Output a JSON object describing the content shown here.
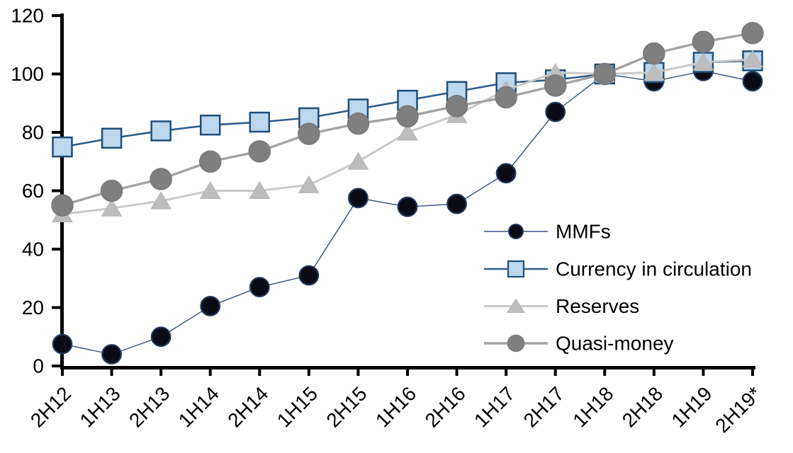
{
  "chart_data": {
    "type": "line",
    "title": "",
    "xlabel": "",
    "ylabel": "",
    "grid": false,
    "ylim": [
      0,
      120
    ],
    "yticks": [
      0,
      20,
      40,
      60,
      80,
      100,
      120
    ],
    "legend_position": "inside-right",
    "categories": [
      "2H12",
      "1H13",
      "2H13",
      "1H14",
      "2H14",
      "1H15",
      "2H15",
      "1H16",
      "2H16",
      "1H17",
      "2H17",
      "1H18",
      "2H18",
      "1H19",
      "2H19*"
    ],
    "series": [
      {
        "name": "MMFs",
        "marker": "circle",
        "marker_fill": "#0b0b15",
        "marker_stroke": "#22395c",
        "line_color": "#33507d",
        "line_width": 1.4,
        "values": [
          7.5,
          4,
          10,
          20.5,
          27,
          31,
          57.5,
          54.5,
          55.5,
          66,
          87,
          100,
          97.5,
          101,
          97.5
        ]
      },
      {
        "name": "Currency in circulation",
        "marker": "square",
        "marker_fill": "#bdd7ee",
        "marker_stroke": "#1f4e79",
        "line_color": "#2e5c8a",
        "line_width": 2.6,
        "values": [
          75,
          78,
          80.5,
          82.5,
          83.5,
          85,
          88,
          91,
          94,
          97,
          98,
          100,
          100.5,
          104,
          104.5
        ]
      },
      {
        "name": "Reserves",
        "marker": "triangle",
        "marker_fill": "#bdbdbd",
        "marker_stroke": "#b3b3b3",
        "line_color": "#c9c9c9",
        "line_width": 3,
        "values": [
          52,
          54,
          56.5,
          60,
          60,
          62,
          70,
          80,
          86,
          94.5,
          100.5,
          100,
          100.5,
          104,
          105
        ]
      },
      {
        "name": "Quasi-money",
        "marker": "circle",
        "marker_fill": "#7f7f7f",
        "marker_stroke": "#787878",
        "line_color": "#a3a3a3",
        "line_width": 3.4,
        "values": [
          55,
          60,
          64,
          70,
          73.5,
          79.5,
          83,
          85.5,
          89,
          92,
          96,
          100,
          107,
          111,
          114
        ]
      }
    ],
    "axis_color": "#000000"
  }
}
